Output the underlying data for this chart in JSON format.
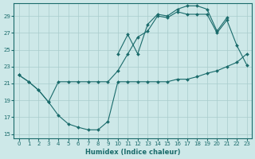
{
  "xlabel": "Humidex (Indice chaleur)",
  "xlim": [
    -0.5,
    23.5
  ],
  "ylim": [
    14.5,
    30.5
  ],
  "yticks": [
    15,
    17,
    19,
    21,
    23,
    25,
    27,
    29
  ],
  "xticks": [
    0,
    1,
    2,
    3,
    4,
    5,
    6,
    7,
    8,
    9,
    10,
    11,
    12,
    13,
    14,
    15,
    16,
    17,
    18,
    19,
    20,
    21,
    22,
    23
  ],
  "bg_color": "#cde8e8",
  "grid_color": "#a8cccc",
  "line_color": "#1a6b6b",
  "line1_x": [
    0,
    1,
    2,
    3,
    4,
    5,
    6,
    7,
    8,
    9,
    10,
    11,
    12,
    13,
    14,
    15,
    16,
    17,
    18,
    19,
    20,
    21,
    22,
    23
  ],
  "line1_y": [
    22.0,
    21.2,
    20.2,
    18.8,
    17.2,
    16.2,
    15.8,
    15.5,
    15.5,
    16.5,
    21.2,
    21.2,
    21.2,
    21.2,
    21.2,
    21.2,
    21.5,
    21.5,
    21.8,
    22.2,
    22.5,
    23.0,
    23.5,
    24.5
  ],
  "line2_x": [
    0,
    1,
    2,
    3,
    4,
    5,
    6,
    7,
    8,
    9,
    10,
    11,
    12,
    13,
    14,
    15,
    16,
    17,
    18,
    19,
    20,
    21,
    22,
    23
  ],
  "line2_y": [
    22.0,
    21.2,
    20.2,
    18.8,
    21.2,
    21.2,
    21.2,
    21.2,
    21.2,
    21.2,
    22.5,
    24.5,
    26.5,
    27.2,
    29.0,
    28.8,
    29.5,
    29.2,
    29.2,
    29.2,
    27.0,
    28.5,
    25.5,
    23.2
  ],
  "line3_x": [
    10,
    11,
    12,
    13,
    14,
    15,
    16,
    17,
    18,
    19,
    20,
    21
  ],
  "line3_y": [
    24.5,
    26.8,
    24.5,
    28.0,
    29.2,
    29.0,
    29.8,
    30.2,
    30.2,
    29.8,
    27.2,
    28.8
  ]
}
